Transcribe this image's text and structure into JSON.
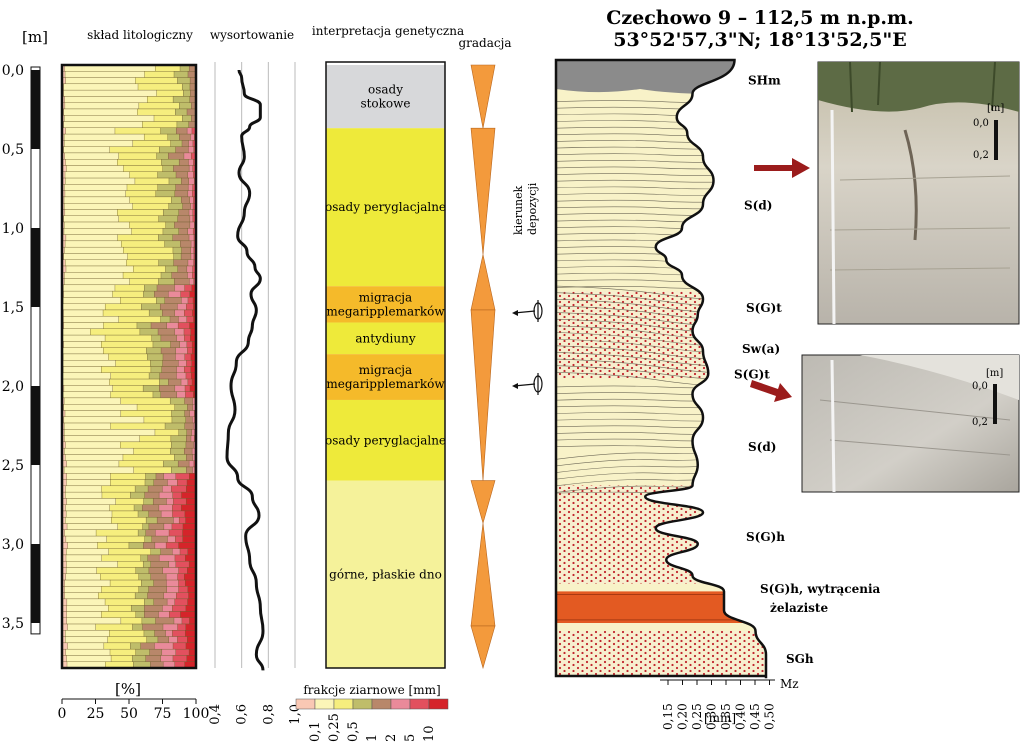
{
  "header": {
    "site": "Czechowo 9 – 112,5 m  n.p.m.",
    "coords": "53°52'57,3\"N; 18°13'52,5\"E"
  },
  "depth_axis": {
    "unit": "[m]",
    "ticks": [
      "0,0",
      "0,5",
      "1,0",
      "1,5",
      "2,0",
      "2,5",
      "3,0",
      "3,5"
    ],
    "max_depth_m": 3.85
  },
  "columns": {
    "lithology_title": "skład litologiczny",
    "sorting_title": "wysortowanie",
    "interpretation_title": "interpretacja genetyczna",
    "gradation_title": "gradacja",
    "percent_label": "[%]",
    "percent_ticks": [
      "0",
      "25",
      "50",
      "75",
      "100"
    ],
    "sorting_ticks": [
      "0,4",
      "0,6",
      "0,8",
      "1,0"
    ],
    "fractions_title": "frakcje ziarnowe [mm]",
    "fraction_labels": [
      "0,1",
      "0,25",
      "0,5",
      "1",
      "2",
      "5",
      "10"
    ],
    "fraction_colors": [
      "#f9c8b4",
      "#fbf5b8",
      "#f6ee7e",
      "#bfbd6a",
      "#b8876a",
      "#e98a9a",
      "#e2505e",
      "#d5242a"
    ],
    "deposition_label": [
      "kierunek",
      "depozycji"
    ],
    "mz_label": "Mz",
    "mz_unit": "[mm]",
    "mz_ticks": [
      "0,15",
      "0,20",
      "0,25",
      "0,30",
      "0,35",
      "0,40",
      "0,45",
      "0,50"
    ]
  },
  "interpretation": [
    {
      "label": "osady stokowe",
      "lines": [
        "osady",
        "stokowe"
      ],
      "top": 0.0,
      "bottom": 0.4,
      "color": "#d7d8da"
    },
    {
      "label": "osady peryglacjalne",
      "lines": [
        "osady peryglacjalne"
      ],
      "top": 0.4,
      "bottom": 1.4,
      "color": "#eeea3a"
    },
    {
      "label": "migracja megaripplemarków",
      "lines": [
        "migracja",
        "megaripplemarków"
      ],
      "top": 1.4,
      "bottom": 1.63,
      "color": "#f5ba2a"
    },
    {
      "label": "antydiuny",
      "lines": [
        "antydiuny"
      ],
      "top": 1.63,
      "bottom": 1.83,
      "color": "#eeea3a"
    },
    {
      "label": "migracja megaripplemarków",
      "lines": [
        "migracja",
        "megaripplemarków"
      ],
      "top": 1.83,
      "bottom": 2.12,
      "color": "#f5ba2a"
    },
    {
      "label": "osady peryglacjalne",
      "lines": [
        "osady peryglacjalne"
      ],
      "top": 2.12,
      "bottom": 2.63,
      "color": "#eeea3a"
    },
    {
      "label": "górne, płaskie dno",
      "lines": [
        "górne, płaskie dno"
      ],
      "top": 2.63,
      "bottom": 3.85,
      "color": "#f5f29a"
    }
  ],
  "gradation": [
    {
      "top": 0.0,
      "bottom": 0.4,
      "dir": "down"
    },
    {
      "top": 0.4,
      "bottom": 1.2,
      "dir": "down"
    },
    {
      "top": 1.2,
      "bottom": 1.55,
      "dir": "up"
    },
    {
      "top": 1.55,
      "bottom": 2.63,
      "dir": "down"
    },
    {
      "top": 2.63,
      "bottom": 2.9,
      "dir": "down"
    },
    {
      "top": 2.9,
      "bottom": 3.55,
      "dir": "up"
    },
    {
      "top": 3.55,
      "bottom": 3.85,
      "dir": "down"
    }
  ],
  "sorting_profile": [
    [
      0.0,
      0.58
    ],
    [
      0.05,
      0.6
    ],
    [
      0.15,
      0.62
    ],
    [
      0.22,
      0.74
    ],
    [
      0.3,
      0.74
    ],
    [
      0.36,
      0.66
    ],
    [
      0.42,
      0.6
    ],
    [
      0.55,
      0.62
    ],
    [
      0.65,
      0.58
    ],
    [
      0.78,
      0.66
    ],
    [
      0.9,
      0.62
    ],
    [
      1.05,
      0.57
    ],
    [
      1.15,
      0.64
    ],
    [
      1.25,
      0.7
    ],
    [
      1.32,
      0.74
    ],
    [
      1.42,
      0.67
    ],
    [
      1.52,
      0.71
    ],
    [
      1.62,
      0.68
    ],
    [
      1.72,
      0.65
    ],
    [
      1.85,
      0.56
    ],
    [
      2.0,
      0.52
    ],
    [
      2.15,
      0.55
    ],
    [
      2.3,
      0.5
    ],
    [
      2.45,
      0.49
    ],
    [
      2.58,
      0.57
    ],
    [
      2.7,
      0.68
    ],
    [
      2.82,
      0.73
    ],
    [
      2.95,
      0.63
    ],
    [
      3.1,
      0.66
    ],
    [
      3.25,
      0.71
    ],
    [
      3.4,
      0.74
    ],
    [
      3.55,
      0.76
    ],
    [
      3.7,
      0.71
    ],
    [
      3.8,
      0.76
    ]
  ],
  "mz_profile": [
    [
      0.0,
      0.44
    ],
    [
      0.15,
      0.36
    ],
    [
      0.3,
      0.33
    ],
    [
      0.4,
      0.35
    ],
    [
      0.55,
      0.38
    ],
    [
      0.7,
      0.4
    ],
    [
      0.85,
      0.38
    ],
    [
      1.0,
      0.34
    ],
    [
      1.12,
      0.29
    ],
    [
      1.2,
      0.31
    ],
    [
      1.3,
      0.34
    ],
    [
      1.45,
      0.38
    ],
    [
      1.55,
      0.37
    ],
    [
      1.65,
      0.36
    ],
    [
      1.78,
      0.38
    ],
    [
      1.92,
      0.39
    ],
    [
      2.05,
      0.36
    ],
    [
      2.2,
      0.38
    ],
    [
      2.35,
      0.36
    ],
    [
      2.5,
      0.37
    ],
    [
      2.63,
      0.36
    ],
    [
      2.7,
      0.27
    ],
    [
      2.8,
      0.38
    ],
    [
      2.9,
      0.29
    ],
    [
      3.0,
      0.37
    ],
    [
      3.1,
      0.31
    ],
    [
      3.2,
      0.36
    ],
    [
      3.3,
      0.42
    ],
    [
      3.42,
      0.42
    ],
    [
      3.55,
      0.48
    ],
    [
      3.7,
      0.5
    ],
    [
      3.85,
      0.5
    ]
  ],
  "facies": [
    {
      "code": "SHm",
      "depth": 0.06
    },
    {
      "code": "S(d)",
      "depth": 0.85
    },
    {
      "code": "S(G)t",
      "depth": 1.5
    },
    {
      "code": "Sw(a)",
      "depth": 1.76
    },
    {
      "code": "S(G)t",
      "depth": 1.92
    },
    {
      "code": "S(d)",
      "depth": 2.38
    },
    {
      "code": "S(G)h",
      "depth": 2.95
    },
    {
      "code": "S(G)h, wytrącenia",
      "depth": 3.28
    },
    {
      "code": "żelaziste",
      "depth": 3.4
    },
    {
      "code": "SGh",
      "depth": 3.72
    }
  ],
  "photos": [
    {
      "scale_unit": "[m]",
      "scale_top": "0,0",
      "scale_bottom": "0,2"
    },
    {
      "scale_unit": "[m]",
      "scale_top": "0,0",
      "scale_bottom": "0,2"
    }
  ]
}
